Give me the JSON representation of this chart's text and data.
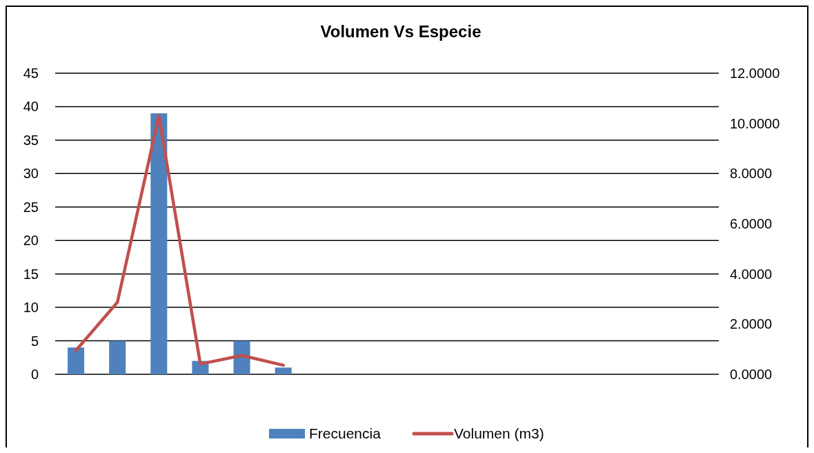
{
  "chart_data": {
    "type": "bar",
    "title": "Volumen Vs Especie",
    "categories": [
      null,
      null,
      null,
      null,
      null,
      null,
      null,
      null,
      null,
      null,
      null,
      null,
      null,
      null,
      null,
      null
    ],
    "series": [
      {
        "name": "Frecuencia",
        "color": "#4f81bd",
        "values": [
          4,
          5,
          39,
          2,
          5,
          1,
          null,
          null,
          null,
          null,
          null,
          null,
          null,
          null,
          null,
          null
        ]
      },
      {
        "name": "Volumen (m3)",
        "type": "line",
        "axis": "y2",
        "color": "#c0504d",
        "values": [
          0.95,
          2.87,
          10.3,
          0.41,
          0.75,
          0.36,
          null,
          null,
          null,
          null,
          null,
          null,
          null,
          null,
          null,
          null
        ]
      }
    ],
    "ylim": [
      0,
      45
    ],
    "yticks": [
      0,
      5,
      10,
      15,
      20,
      25,
      30,
      35,
      40,
      45
    ],
    "y2lim": [
      0,
      12
    ],
    "y2ticks": [
      {
        "value": 0,
        "label": "0.0000"
      },
      {
        "value": 2,
        "label": "2.0000"
      },
      {
        "value": 4,
        "label": "4.0000"
      },
      {
        "value": 6,
        "label": "6.0000"
      },
      {
        "value": 8,
        "label": "8.0000"
      },
      {
        "value": 10,
        "label": "10.0000"
      },
      {
        "value": 12,
        "label": "12.0000"
      }
    ],
    "grid": "y",
    "legend": "bottom",
    "marker": "none",
    "line_style": "solid"
  }
}
